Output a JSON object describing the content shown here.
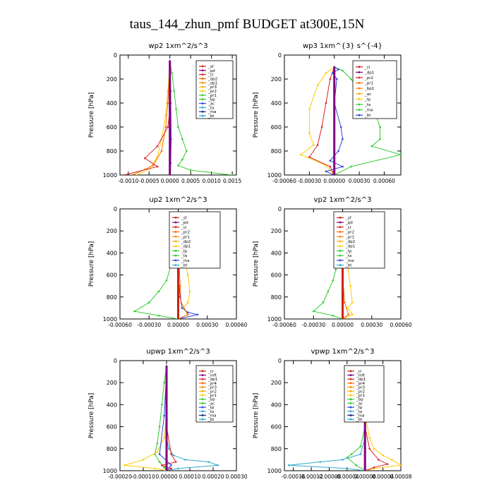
{
  "title": "taus_144_zhun_pmf  BUDGET at300E,15N",
  "chart_data": [
    {
      "type": "line",
      "title": "wp2   1xm^2/s^3",
      "ylabel": "Pressure  [hPa]",
      "ylim": [
        1000,
        0
      ],
      "yticks": [
        "0",
        "200",
        "400",
        "600",
        "800",
        "1000"
      ],
      "xlim": [
        -0.0012,
        0.0016
      ],
      "xticks": [
        "-0.0010",
        "-0.0005",
        "0.0000",
        "0.0005",
        "0.0010",
        "0.0015"
      ],
      "legend": [
        "_sf",
        "_pd",
        "_cl",
        "_dp2",
        "_dp1",
        "_pr3",
        "_pr2",
        "_pr1",
        "_bp",
        "_ac",
        "_ta",
        "_ma",
        "_bt"
      ],
      "series": [
        {
          "name": "_pr1",
          "color": "#33cc33",
          "x": [
            0.0,
            5e-05,
            0.0001,
            0.00015,
            0.0002,
            0.0003,
            0.0004,
            0.0003,
            0.0002,
            0.0005,
            0.0015
          ],
          "y": [
            60,
            150,
            300,
            450,
            600,
            700,
            800,
            870,
            920,
            960,
            1000
          ]
        },
        {
          "name": "_pr2",
          "color": "#ffcc00",
          "x": [
            0.0,
            -5e-05,
            -0.0001,
            -0.0002,
            -0.0003,
            -0.0005,
            -0.0008
          ],
          "y": [
            80,
            300,
            500,
            700,
            850,
            950,
            1000
          ]
        },
        {
          "name": "_dp1",
          "color": "#ff6600",
          "x": [
            0.0,
            -5e-05,
            -0.0001,
            -0.0002,
            -0.0004,
            -0.0009
          ],
          "y": [
            100,
            400,
            600,
            800,
            920,
            1000
          ]
        },
        {
          "name": "_cl",
          "color": "#dd2222",
          "x": [
            0.0,
            2e-05,
            -5e-05,
            -0.0003,
            -0.0006,
            -0.0003,
            -0.0011
          ],
          "y": [
            60,
            400,
            600,
            760,
            860,
            930,
            1000
          ]
        },
        {
          "name": "_ac",
          "color": "#3344dd",
          "x": [
            0.0,
            2e-05,
            3e-05,
            2e-05,
            0.0
          ],
          "y": [
            50,
            300,
            700,
            900,
            1000
          ]
        },
        {
          "name": "_bt",
          "color": "#800080",
          "width": 3,
          "x": [
            0.0,
            0.0,
            0.0,
            0.0,
            0.0,
            0.0
          ],
          "y": [
            50,
            200,
            400,
            600,
            800,
            1000
          ]
        }
      ]
    },
    {
      "type": "line",
      "title": "wp3   1xm^{3} s^{-4}",
      "ylabel": "Pressure  [hPa]",
      "ylim": [
        1000,
        0
      ],
      "yticks": [
        "0",
        "200",
        "400",
        "600",
        "800",
        "1000"
      ],
      "xlim": [
        -0.0006,
        0.0008
      ],
      "xticks": [
        "-0.00060",
        "-0.00030",
        "0.00000",
        "0.00030",
        "0.00060"
      ],
      "legend": [
        "_cl",
        "_dp1",
        "_pr2",
        "_pr1",
        "_bp1",
        "_ac",
        "_tp",
        "_ta",
        "_ma",
        "_bt"
      ],
      "series": [
        {
          "name": "_pr1",
          "color": "#33cc33",
          "x": [
            0.0,
            0.0001,
            0.0002,
            0.00035,
            0.0005,
            0.00055,
            0.00055,
            0.00045,
            0.0008,
            0.0002,
            0.0
          ],
          "y": [
            100,
            130,
            200,
            350,
            500,
            600,
            700,
            760,
            830,
            930,
            1000
          ]
        },
        {
          "name": "_pr2",
          "color": "#ffcc00",
          "x": [
            0.0,
            -0.0001,
            -0.0002,
            -0.0003,
            -0.0003,
            -0.00025,
            -0.0004,
            -0.0001,
            0.0
          ],
          "y": [
            100,
            150,
            250,
            450,
            650,
            750,
            830,
            920,
            1000
          ]
        },
        {
          "name": "_cl",
          "color": "#dd2222",
          "x": [
            0.0,
            -5e-05,
            -0.0001,
            -0.00015,
            -0.0002,
            -0.0003,
            -5e-05,
            0.0
          ],
          "y": [
            100,
            200,
            400,
            600,
            750,
            850,
            930,
            1000
          ]
        },
        {
          "name": "_ac",
          "color": "#3344dd",
          "x": [
            0.0,
            5e-05,
            -2e-05,
            3e-05,
            0.0,
            8e-05,
            0.0001,
            5e-05,
            -5e-05,
            0.0001,
            -0.0001,
            0.0
          ],
          "y": [
            100,
            120,
            150,
            200,
            400,
            600,
            700,
            800,
            880,
            930,
            970,
            1000
          ]
        },
        {
          "name": "_bt",
          "color": "#800080",
          "width": 3,
          "x": [
            0.0,
            0.0,
            0.0,
            0.0,
            0.0,
            0.0
          ],
          "y": [
            100,
            200,
            400,
            600,
            800,
            1000
          ]
        }
      ]
    },
    {
      "type": "line",
      "title": "up2   1xm^2/s^3",
      "ylabel": "Pressure  [hPa]",
      "ylim": [
        1000,
        0
      ],
      "yticks": [
        "0",
        "200",
        "400",
        "600",
        "800",
        "1000"
      ],
      "xlim": [
        -0.0006,
        0.0006
      ],
      "xticks": [
        "-0.00060",
        "-0.00030",
        "0.00000",
        "0.00030",
        "0.00060"
      ],
      "legend": [
        "_sf",
        "_pd",
        "_cl",
        "_pr2",
        "_pr1",
        "_dp2",
        "_dp1",
        "_tp",
        "_ta",
        "_ma",
        "_bt"
      ],
      "series": [
        {
          "name": "_pr2",
          "color": "#ffcc00",
          "x": [
            0.0,
            2e-05,
            5e-05,
            0.0001,
            0.00012,
            0.0001,
            5e-05,
            0.0001,
            0.0
          ],
          "y": [
            50,
            200,
            400,
            600,
            750,
            850,
            900,
            960,
            1000
          ]
        },
        {
          "name": "_pr1",
          "color": "#33cc33",
          "x": [
            0.0,
            -2e-05,
            -4e-05,
            -7e-05,
            -0.00012,
            -0.0002,
            -0.0003,
            -0.00045,
            -0.0002,
            0.0
          ],
          "y": [
            50,
            150,
            300,
            500,
            650,
            750,
            850,
            930,
            970,
            1000
          ]
        },
        {
          "name": "_tp",
          "color": "#3344dd",
          "x": [
            0.0,
            2e-05,
            4e-05,
            0.0001,
            0.0002,
            0.0
          ],
          "y": [
            600,
            800,
            900,
            940,
            960,
            1000
          ]
        },
        {
          "name": "_dp1",
          "color": "#ff6600",
          "x": [
            0.0,
            2e-05,
            3e-05,
            0.0001,
            0.0
          ],
          "y": [
            300,
            700,
            850,
            960,
            1000
          ]
        },
        {
          "name": "_cl",
          "color": "#cc2200",
          "width": 3,
          "x": [
            0.0,
            0.0,
            0.0,
            0.0,
            0.0,
            0.0
          ],
          "y": [
            50,
            200,
            400,
            600,
            800,
            1000
          ]
        }
      ]
    },
    {
      "type": "line",
      "title": "vp2   1xm^2/s^3",
      "ylabel": "Pressure  [hPa]",
      "ylim": [
        1000,
        0
      ],
      "yticks": [
        "0",
        "200",
        "400",
        "600",
        "800",
        "1000"
      ],
      "xlim": [
        -0.0006,
        0.0006
      ],
      "xticks": [
        "-0.00060",
        "-0.00030",
        "0.00000",
        "0.00030",
        "0.00060"
      ],
      "legend": [
        "_sf",
        "_pd",
        "_cl",
        "_pr2",
        "_pr1",
        "_dp2",
        "_dp1",
        "_tp",
        "_ta",
        "_ma",
        "_bt"
      ],
      "series": [
        {
          "name": "_pr2",
          "color": "#ffcc00",
          "x": [
            0.0,
            2e-05,
            5e-05,
            8e-05,
            0.0001,
            5e-05,
            0.0001,
            0.0
          ],
          "y": [
            50,
            300,
            500,
            700,
            850,
            900,
            960,
            1000
          ]
        },
        {
          "name": "_pr1",
          "color": "#33cc33",
          "x": [
            0.0,
            -2e-05,
            -4e-05,
            -7e-05,
            -0.0001,
            -0.00015,
            -0.0002,
            -0.0003,
            -0.0001,
            0.0
          ],
          "y": [
            50,
            200,
            400,
            550,
            650,
            750,
            850,
            930,
            970,
            1000
          ]
        },
        {
          "name": "_tp",
          "color": "#3344dd",
          "x": [
            0.0,
            2e-05,
            0.0
          ],
          "y": [
            100,
            200,
            300
          ]
        },
        {
          "name": "_dp1",
          "color": "#ff6600",
          "x": [
            0.0,
            2e-05,
            6e-05,
            0.0
          ],
          "y": [
            600,
            850,
            960,
            1000
          ]
        },
        {
          "name": "_cl",
          "color": "#cc2200",
          "width": 3,
          "x": [
            0.0,
            0.0,
            0.0,
            0.0,
            0.0,
            0.0
          ],
          "y": [
            50,
            200,
            400,
            600,
            800,
            1000
          ]
        }
      ]
    },
    {
      "type": "line",
      "title": "upwp   1xm^2/s^3",
      "ylabel": "Pressure  [hPa]",
      "ylim": [
        1000,
        0
      ],
      "yticks": [
        "0",
        "200",
        "400",
        "600",
        "800",
        "1000"
      ],
      "xlim": [
        -0.0002,
        0.0003
      ],
      "xticks": [
        "-0.00020",
        "-0.00010",
        "0.00000",
        "0.00010",
        "0.00020",
        "0.00030"
      ],
      "legend": [
        "_cl",
        "_mft",
        "_dp1",
        "_pr4",
        "_pr3",
        "_pr2",
        "_pr1",
        "_bp",
        "_ac",
        "_tp",
        "_ta",
        "_ma",
        "_bt"
      ],
      "series": [
        {
          "name": "_pr1",
          "color": "#33cc33",
          "x": [
            0.0,
            -1e-05,
            -2e-05,
            -3e-05,
            -4e-05,
            -5e-05,
            -3e-05,
            -1e-05,
            0.0
          ],
          "y": [
            50,
            200,
            400,
            600,
            750,
            850,
            920,
            970,
            1000
          ]
        },
        {
          "name": "_tp",
          "color": "#33aacc",
          "x": [
            0.0,
            1e-05,
            3e-05,
            8e-05,
            0.00018,
            0.00022,
            5e-05,
            0.0
          ],
          "y": [
            700,
            800,
            860,
            900,
            920,
            950,
            980,
            1000
          ]
        },
        {
          "name": "_pr2",
          "color": "#ffcc00",
          "x": [
            0.0,
            -1e-05,
            -4e-05,
            -0.0001,
            -0.00018,
            -5e-05,
            0.0
          ],
          "y": [
            500,
            700,
            830,
            900,
            950,
            980,
            1000
          ]
        },
        {
          "name": "_dp1",
          "color": "#dd2222",
          "x": [
            0.0,
            2e-05,
            4e-05,
            -2e-05,
            2e-05,
            0.0
          ],
          "y": [
            600,
            850,
            920,
            950,
            980,
            1000
          ]
        },
        {
          "name": "_ac",
          "color": "#3344dd",
          "x": [
            0.0,
            -1e-05,
            -3e-05,
            2e-05,
            0.0
          ],
          "y": [
            100,
            500,
            850,
            950,
            1000
          ]
        },
        {
          "name": "_cl",
          "color": "#800080",
          "width": 3,
          "x": [
            0.0,
            0.0,
            0.0,
            0.0,
            0.0,
            0.0
          ],
          "y": [
            50,
            200,
            400,
            600,
            800,
            1000
          ]
        }
      ]
    },
    {
      "type": "line",
      "title": "vpwp   1xm^2/s^3",
      "ylabel": "Pressure  [hPa]",
      "ylim": [
        1000,
        0
      ],
      "yticks": [
        "0",
        "200",
        "400",
        "600",
        "800",
        "1000"
      ],
      "xlim": [
        -0.00018,
        8e-05
      ],
      "xticks": [
        "-0.00016",
        "-0.00012",
        "-0.00008",
        "-0.00004",
        "0.00000",
        "0.00004",
        "0.00008"
      ],
      "legend": [
        "_cl",
        "_mft",
        "_dp1",
        "_pr4",
        "_pr3",
        "_pr2",
        "_pr1",
        "_bp",
        "_ac",
        "_tp",
        "_ta",
        "_ma",
        "_bt"
      ],
      "series": [
        {
          "name": "_pr2",
          "color": "#ffcc00",
          "x": [
            0.0,
            1e-05,
            2e-05,
            4e-05,
            6e-05,
            8e-05,
            2e-05,
            0.0
          ],
          "y": [
            500,
            700,
            800,
            860,
            900,
            950,
            980,
            1000
          ]
        },
        {
          "name": "_pr1",
          "color": "#33cc33",
          "x": [
            0.0,
            -1e-05,
            -3e-05,
            -4e-05,
            -2e-05,
            0.0
          ],
          "y": [
            600,
            780,
            850,
            880,
            950,
            1000
          ]
        },
        {
          "name": "_tp",
          "color": "#33aacc",
          "x": [
            0.0,
            -1e-05,
            -5e-05,
            -0.0001,
            -0.00017,
            -4e-05,
            0.0
          ],
          "y": [
            700,
            850,
            900,
            920,
            950,
            980,
            1000
          ]
        },
        {
          "name": "_dp1",
          "color": "#dd2222",
          "x": [
            0.0,
            1e-05,
            3e-05,
            5e-05,
            2e-05,
            0.0
          ],
          "y": [
            600,
            800,
            900,
            940,
            970,
            1000
          ]
        },
        {
          "name": "_cl",
          "color": "#800080",
          "width": 3,
          "x": [
            0.0,
            0.0,
            0.0,
            0.0,
            0.0,
            0.0
          ],
          "y": [
            50,
            200,
            400,
            600,
            800,
            1000
          ]
        }
      ]
    }
  ]
}
